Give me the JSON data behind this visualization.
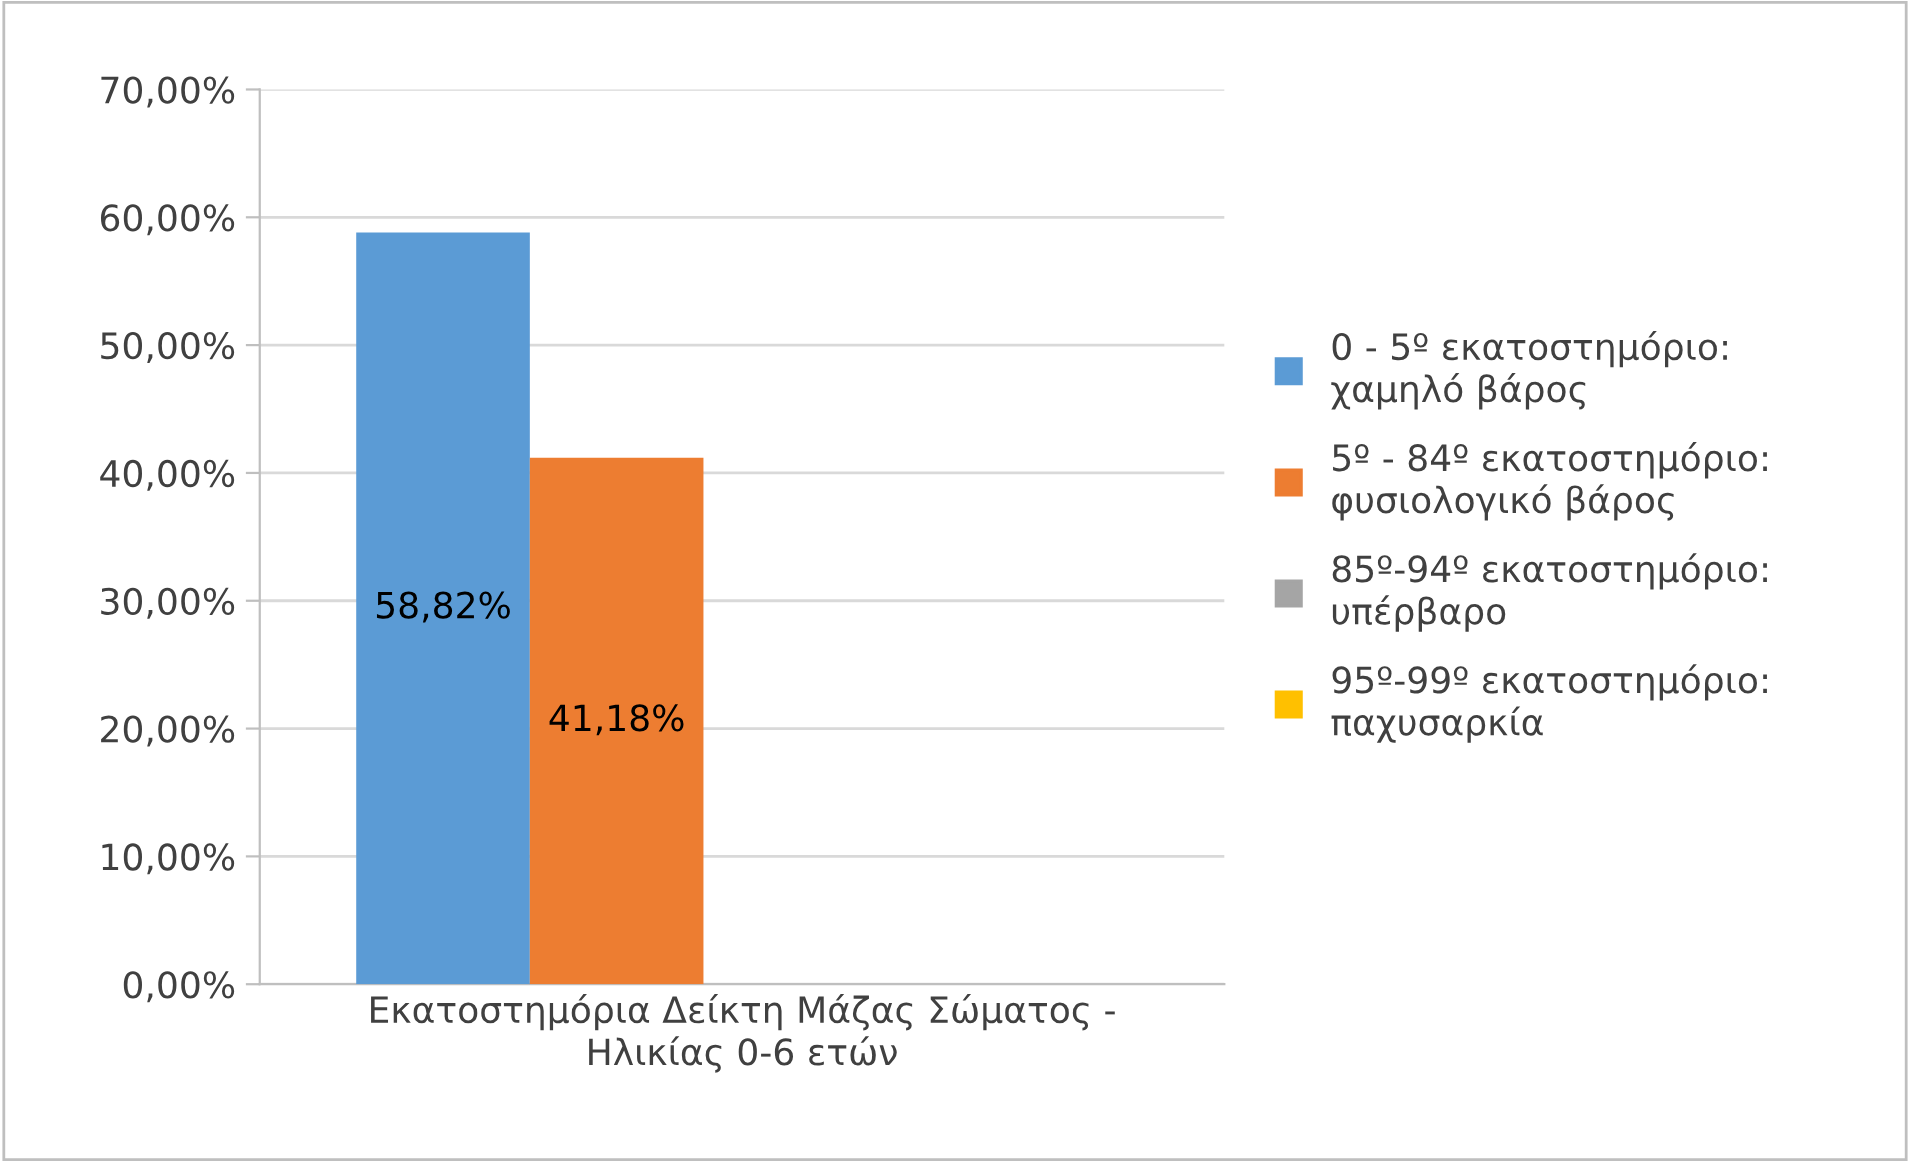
{
  "chart_data": {
    "type": "bar",
    "categories": [
      "Εκατοστημόρια Δείκτη Μάζας Σώματος - Ηλικίας 0-6 ετών"
    ],
    "series": [
      {
        "name": "0 - 5º εκατοστημόριο: χαμηλό βάρος",
        "color": "#5b9bd5",
        "values": [
          58.82
        ],
        "value_labels": [
          "58,82%"
        ]
      },
      {
        "name": "5º - 84º εκατοστημόριο: φυσιολογικό βάρος",
        "color": "#ed7d31",
        "values": [
          41.18
        ],
        "value_labels": [
          "41,18%"
        ]
      },
      {
        "name": "85º-94º εκατοστημόριο: υπέρβαρο",
        "color": "#a5a5a5",
        "values": [
          0
        ],
        "value_labels": [
          null
        ]
      },
      {
        "name": "95º-99º εκατοστημόριο: παχυσαρκία",
        "color": "#ffc000",
        "values": [
          0
        ],
        "value_labels": [
          null
        ]
      }
    ],
    "ylim": [
      0,
      70
    ],
    "yticks": [
      {
        "value": 0,
        "label": "0,00%"
      },
      {
        "value": 10,
        "label": "10,00%"
      },
      {
        "value": 20,
        "label": "20,00%"
      },
      {
        "value": 30,
        "label": "30,00%"
      },
      {
        "value": 40,
        "label": "40,00%"
      },
      {
        "value": 50,
        "label": "50,00%"
      },
      {
        "value": 60,
        "label": "60,00%"
      },
      {
        "value": 70,
        "label": "70,00%"
      }
    ],
    "grid": "y",
    "legend": "right"
  }
}
